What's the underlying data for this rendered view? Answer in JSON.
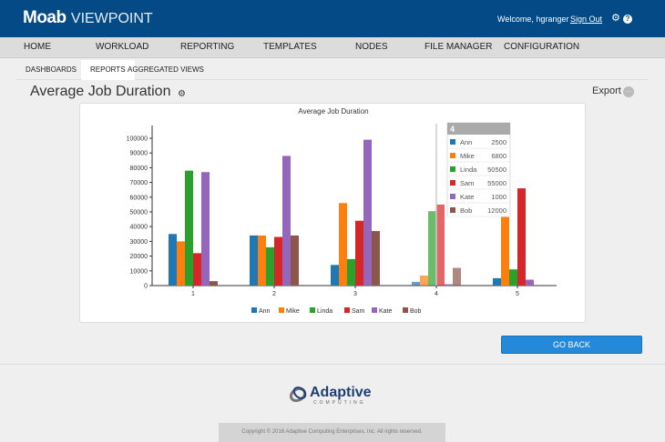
{
  "header": {
    "brand_bold": "Moab",
    "brand_light": "VIEWPOINT",
    "welcome": "Welcome, hgranger",
    "sign_out": "Sign Out"
  },
  "nav": [
    "HOME",
    "WORKLOAD",
    "REPORTING",
    "TEMPLATES",
    "NODES",
    "FILE MANAGER",
    "CONFIGURATION"
  ],
  "subnav": [
    "DASHBOARDS",
    "REPORTS",
    "AGGREGATED VIEWS"
  ],
  "page": {
    "title": "Average Job Duration",
    "export": "Export",
    "export_btn": "...",
    "go_back": "GO BACK"
  },
  "footer": {
    "logo_main": "Adaptive",
    "logo_sub": "COMPUTING",
    "copyright": "Copyright © 2016 Adaptive Computing Enterprises, Inc. All rights reserved."
  },
  "colors": {
    "Ann": "#1f77b4",
    "Mike": "#ff7f0e",
    "Linda": "#2ca02c",
    "Sam": "#d62728",
    "Kate": "#9467bd",
    "Bob": "#8c564b"
  },
  "chart_data": {
    "type": "bar",
    "title": "Average Job Duration",
    "categories": [
      "1",
      "2",
      "3",
      "4",
      "5"
    ],
    "ylim": [
      0,
      105000
    ],
    "yticks": [
      0,
      10000,
      20000,
      30000,
      40000,
      50000,
      60000,
      70000,
      80000,
      90000,
      100000
    ],
    "legend": "bottom",
    "series": [
      {
        "name": "Ann",
        "values": [
          35000,
          34000,
          14000,
          2500,
          5000
        ]
      },
      {
        "name": "Mike",
        "values": [
          30000,
          34000,
          56000,
          6800,
          62000
        ]
      },
      {
        "name": "Linda",
        "values": [
          78000,
          26000,
          18000,
          50500,
          11000
        ]
      },
      {
        "name": "Sam",
        "values": [
          22000,
          33000,
          44000,
          55000,
          66000
        ]
      },
      {
        "name": "Kate",
        "values": [
          77000,
          88000,
          99000,
          1000,
          4000
        ]
      },
      {
        "name": "Bob",
        "values": [
          3000,
          34000,
          37000,
          12000,
          0
        ]
      }
    ],
    "tooltip": {
      "title": "4",
      "rows": [
        [
          "Ann",
          "2500"
        ],
        [
          "Mike",
          "6800"
        ],
        [
          "Linda",
          "50500"
        ],
        [
          "Sam",
          "55000"
        ],
        [
          "Kate",
          "1000"
        ],
        [
          "Bob",
          "12000"
        ]
      ]
    }
  }
}
